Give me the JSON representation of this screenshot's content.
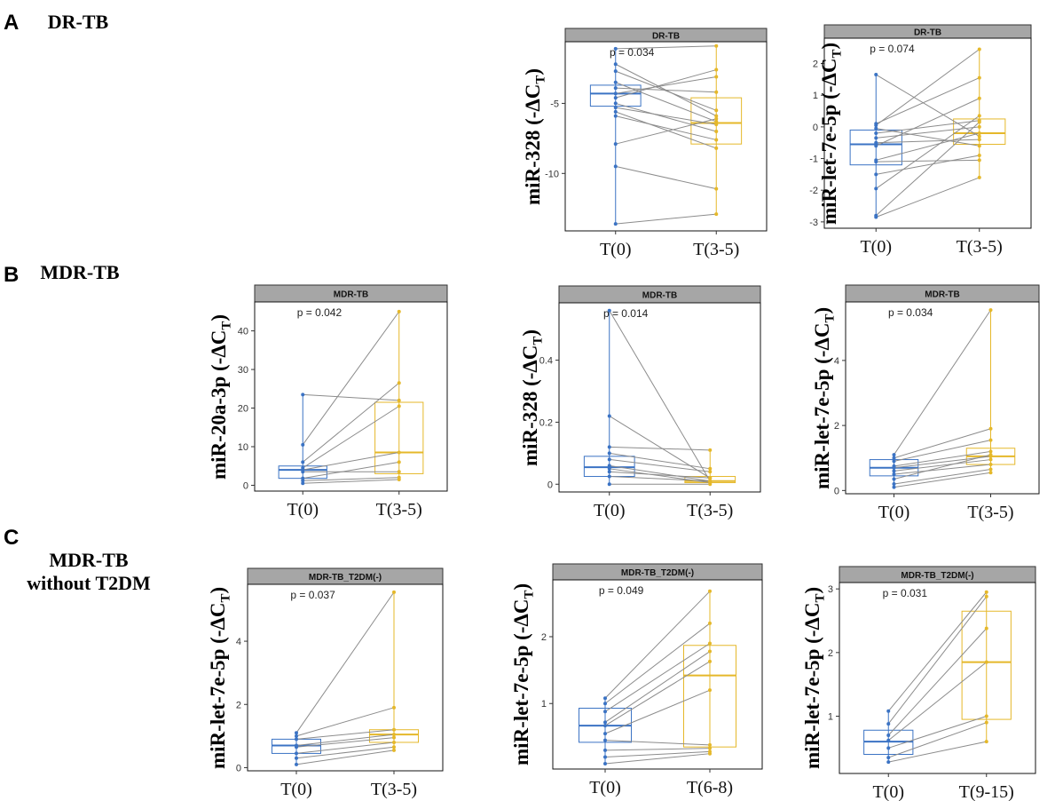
{
  "sections": [
    {
      "letter": "A",
      "title_lines": [
        "DR-TB"
      ]
    },
    {
      "letter": "B",
      "title_lines": [
        "MDR-TB"
      ]
    },
    {
      "letter": "C",
      "title_lines": [
        "MDR-TB",
        "without T2DM"
      ]
    }
  ],
  "colors": {
    "t0": "#3b73c4",
    "t1": "#e5b82a",
    "line": "#8c8c8c",
    "strip": "#a6a6a6"
  },
  "chart_data": [
    {
      "id": "A2",
      "type": "box-paired",
      "strip": "DR-TB",
      "pvalue": "p = 0.034",
      "ylabel": "miR-328 (-ΔC",
      "ylabel_sub": "T",
      "ylabel_end": ")",
      "categories": [
        "T(0)",
        "T(3-5)"
      ],
      "ylim": [
        -14.1,
        -0.6
      ],
      "yticks": [
        -5,
        -10
      ],
      "box": [
        [
          -5.2,
          -4.3,
          -3.7
        ],
        [
          -7.9,
          -6.4,
          -4.6
        ]
      ],
      "pairs": [
        [
          -1.1,
          -0.9
        ],
        [
          -2.2,
          -5.9
        ],
        [
          -2.7,
          -5.5
        ],
        [
          -3.5,
          -6.3
        ],
        [
          -3.9,
          -4.2
        ],
        [
          -4.3,
          -3.1
        ],
        [
          -4.6,
          -2.6
        ],
        [
          -5.0,
          -7.0
        ],
        [
          -5.3,
          -6.5
        ],
        [
          -5.6,
          -8.2
        ],
        [
          -5.9,
          -7.6
        ],
        [
          -7.9,
          -6.1
        ],
        [
          -9.5,
          -11.1
        ],
        [
          -13.6,
          -12.9
        ]
      ]
    },
    {
      "id": "A3",
      "type": "box-paired",
      "strip": "DR-TB",
      "pvalue": "p = 0.074",
      "ylabel": "miR-let-7e-5p (-ΔC",
      "ylabel_sub": "T",
      "ylabel_end": ")",
      "categories": [
        "T(0)",
        "T(3-5)"
      ],
      "ylim": [
        -3.2,
        2.8
      ],
      "yticks": [
        2,
        1,
        0,
        -1,
        -2,
        -3
      ],
      "box": [
        [
          -1.2,
          -0.55,
          -0.1
        ],
        [
          -0.55,
          -0.2,
          0.25
        ]
      ],
      "pairs": [
        [
          1.65,
          -0.3
        ],
        [
          0.1,
          1.55
        ],
        [
          0.05,
          2.45
        ],
        [
          -0.05,
          -0.6
        ],
        [
          -0.2,
          0.2
        ],
        [
          -0.35,
          0.0
        ],
        [
          -0.5,
          -0.4
        ],
        [
          -0.6,
          0.9
        ],
        [
          -1.05,
          -0.2
        ],
        [
          -1.1,
          -1.05
        ],
        [
          -1.5,
          -0.9
        ],
        [
          -1.95,
          0.35
        ],
        [
          -2.8,
          0.15
        ],
        [
          -2.85,
          -1.6
        ]
      ]
    },
    {
      "id": "B1",
      "type": "box-paired",
      "strip": "MDR-TB",
      "pvalue": "p = 0.042",
      "ylabel": "miR-20a-3p (-ΔC",
      "ylabel_sub": "T",
      "ylabel_end": ")",
      "categories": [
        "T(0)",
        "T(3-5)"
      ],
      "ylim": [
        -1.5,
        47.5
      ],
      "yticks": [
        0,
        10,
        20,
        30,
        40
      ],
      "box": [
        [
          1.8,
          4.0,
          5.0
        ],
        [
          3.0,
          8.5,
          21.5
        ]
      ],
      "pairs": [
        [
          23.5,
          22.0
        ],
        [
          10.5,
          45.0
        ],
        [
          6.0,
          26.5
        ],
        [
          4.5,
          20.5
        ],
        [
          4.0,
          8.5
        ],
        [
          3.5,
          3.5
        ],
        [
          1.8,
          6.0
        ],
        [
          1.2,
          2.0
        ],
        [
          0.5,
          1.5
        ]
      ]
    },
    {
      "id": "B2",
      "type": "box-paired",
      "strip": "MDR-TB",
      "pvalue": "p = 0.014",
      "ylabel": "miR-328 (-ΔC",
      "ylabel_sub": "T",
      "ylabel_end": ")",
      "categories": [
        "T(0)",
        "T(3-5)"
      ],
      "ylim": [
        -0.025,
        0.585
      ],
      "yticks": [
        0.0,
        0.2,
        0.4
      ],
      "box": [
        [
          0.025,
          0.055,
          0.09
        ],
        [
          0.005,
          0.01,
          0.025
        ]
      ],
      "pairs": [
        [
          0.56,
          0.01
        ],
        [
          0.22,
          0.02
        ],
        [
          0.12,
          0.11
        ],
        [
          0.1,
          0.05
        ],
        [
          0.08,
          0.04
        ],
        [
          0.06,
          0.01
        ],
        [
          0.05,
          0.005
        ],
        [
          0.04,
          0.02
        ],
        [
          0.025,
          0.01
        ],
        [
          0.0,
          0.0
        ]
      ]
    },
    {
      "id": "B3",
      "type": "box-paired",
      "strip": "MDR-TB",
      "pvalue": "p = 0.034",
      "ylabel": "miR-let-7e-5p (-ΔC",
      "ylabel_sub": "T",
      "ylabel_end": ")",
      "categories": [
        "T(0)",
        "T(3-5)"
      ],
      "ylim": [
        -0.1,
        5.8
      ],
      "yticks": [
        0,
        2,
        4
      ],
      "box": [
        [
          0.45,
          0.7,
          0.95
        ],
        [
          0.8,
          1.05,
          1.3
        ]
      ],
      "pairs": [
        [
          1.1,
          5.55
        ],
        [
          1.0,
          1.9
        ],
        [
          0.9,
          1.55
        ],
        [
          0.75,
          1.2
        ],
        [
          0.7,
          1.05
        ],
        [
          0.6,
          0.95
        ],
        [
          0.5,
          0.8
        ],
        [
          0.35,
          1.1
        ],
        [
          0.2,
          0.65
        ],
        [
          0.1,
          0.55
        ]
      ]
    },
    {
      "id": "C1",
      "type": "box-paired",
      "strip": "MDR-TB_T2DM(-)",
      "pvalue": "p = 0.037",
      "ylabel": "miR-let-7e-5p (-ΔC",
      "ylabel_sub": "T",
      "ylabel_end": ")",
      "categories": [
        "T(0)",
        "T(3-5)"
      ],
      "ylim": [
        -0.1,
        5.8
      ],
      "yticks": [
        0,
        2,
        4
      ],
      "box": [
        [
          0.45,
          0.7,
          0.9
        ],
        [
          0.8,
          1.05,
          1.2
        ]
      ],
      "pairs": [
        [
          1.1,
          5.55
        ],
        [
          1.0,
          1.9
        ],
        [
          0.9,
          1.2
        ],
        [
          0.7,
          1.05
        ],
        [
          0.65,
          0.95
        ],
        [
          0.45,
          0.8
        ],
        [
          0.3,
          0.65
        ],
        [
          0.1,
          0.55
        ]
      ]
    },
    {
      "id": "C2",
      "type": "box-paired",
      "strip": "MDR-TB_T2DM(-)",
      "pvalue": "p = 0.049",
      "ylabel": "miR-let-7e-5p (-ΔC",
      "ylabel_sub": "T",
      "ylabel_end": ")",
      "categories": [
        "T(0)",
        "T(6-8)"
      ],
      "ylim": [
        0.02,
        2.85
      ],
      "yticks": [
        1,
        2
      ],
      "box": [
        [
          0.42,
          0.67,
          0.93
        ],
        [
          0.35,
          1.42,
          1.87
        ]
      ],
      "pairs": [
        [
          1.08,
          2.68
        ],
        [
          1.0,
          2.2
        ],
        [
          0.88,
          1.9
        ],
        [
          0.72,
          1.78
        ],
        [
          0.67,
          1.63
        ],
        [
          0.55,
          1.2
        ],
        [
          0.45,
          0.38
        ],
        [
          0.3,
          0.33
        ],
        [
          0.2,
          0.28
        ],
        [
          0.1,
          0.25
        ]
      ]
    },
    {
      "id": "C3",
      "type": "box-paired",
      "strip": "MDR-TB_T2DM(-)",
      "pvalue": "p = 0.031",
      "ylabel": "miR-let-7e-5p (-ΔC",
      "ylabel_sub": "T",
      "ylabel_end": ")",
      "categories": [
        "T(0)",
        "T(9-15)"
      ],
      "ylim": [
        0.1,
        3.1
      ],
      "yticks": [
        1,
        2,
        3
      ],
      "box": [
        [
          0.4,
          0.6,
          0.78
        ],
        [
          0.95,
          1.85,
          2.65
        ]
      ],
      "pairs": [
        [
          1.08,
          2.95
        ],
        [
          0.88,
          2.88
        ],
        [
          0.7,
          2.38
        ],
        [
          0.62,
          1.85
        ],
        [
          0.5,
          1.0
        ],
        [
          0.35,
          0.9
        ],
        [
          0.28,
          0.6
        ]
      ]
    }
  ]
}
